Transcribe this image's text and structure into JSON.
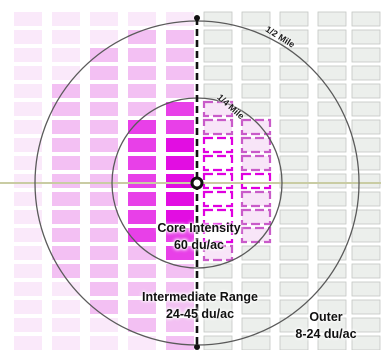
{
  "diagram": {
    "rings": [
      {
        "id": "half",
        "label": "1/2 Mile"
      },
      {
        "id": "quarter",
        "label": "1/4 Mile"
      }
    ],
    "zones": [
      {
        "id": "core",
        "title": "Core Intensity",
        "density": "60 du/ac"
      },
      {
        "id": "intermediate",
        "title": "Intermediate Range",
        "density": "24-45 du/ac"
      },
      {
        "id": "outer",
        "title": "Outer",
        "density": "8-24 du/ac"
      }
    ],
    "colors": {
      "core": "#e000e0",
      "intermediate": "#e98ce9",
      "outer": "#f3cff3",
      "grid_fade": "#e6e9e6",
      "ring_stroke": "#5a5a5a",
      "road": "#c9cca3",
      "transit_line": "#111111"
    }
  }
}
